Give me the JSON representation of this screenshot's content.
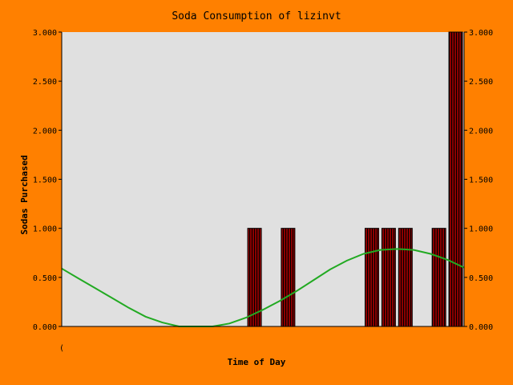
{
  "chart_data": {
    "type": "bar",
    "title": "Soda Consumption of lizinvt",
    "xlabel": "Time of Day",
    "ylabel": "Sodas Purchased",
    "ylim": [
      0,
      3
    ],
    "y_ticks": [
      "0.000",
      "0.500",
      "1.000",
      "1.500",
      "2.000",
      "2.500",
      "3.000"
    ],
    "x_tick_labels": [
      "("
    ],
    "x_range": [
      0,
      24
    ],
    "bars": [
      {
        "x": 11.5,
        "value": 1
      },
      {
        "x": 13.5,
        "value": 1
      },
      {
        "x": 18.5,
        "value": 1
      },
      {
        "x": 19.5,
        "value": 1
      },
      {
        "x": 20.5,
        "value": 1
      },
      {
        "x": 22.5,
        "value": 1
      },
      {
        "x": 23.5,
        "value": 3
      }
    ],
    "series": [
      {
        "type": "line",
        "x": [
          0,
          1,
          2,
          3,
          4,
          5,
          6,
          7,
          8,
          9,
          10,
          11,
          12,
          13,
          14,
          15,
          16,
          17,
          18,
          19,
          20,
          21,
          22,
          23,
          24
        ],
        "values": [
          0.59,
          0.49,
          0.39,
          0.29,
          0.19,
          0.1,
          0.04,
          0.0,
          -0.01,
          0.0,
          0.03,
          0.09,
          0.17,
          0.26,
          0.36,
          0.47,
          0.58,
          0.67,
          0.74,
          0.78,
          0.79,
          0.78,
          0.74,
          0.68,
          0.6
        ]
      }
    ],
    "colors": {
      "background": "#ff8000",
      "plot_background": "#e0e0e0",
      "bar_fill": "#8b0000",
      "bar_stripe": "#000000",
      "line": "#22aa22"
    }
  }
}
